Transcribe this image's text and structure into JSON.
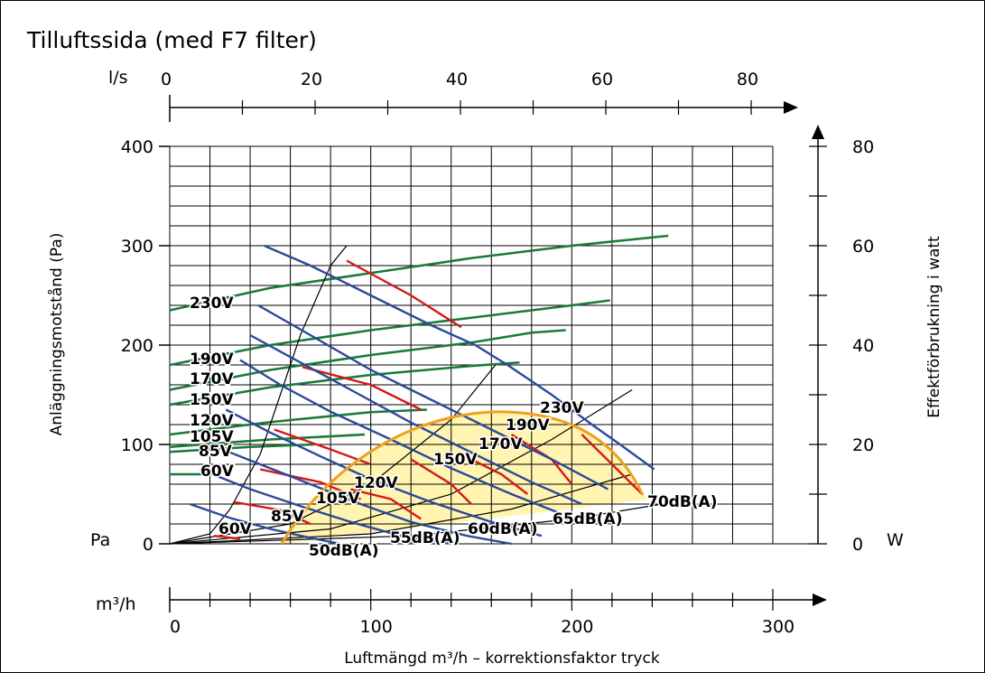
{
  "title": "Tilluftssida (med F7 filter)",
  "colors": {
    "green_curve": "#1a7a3a",
    "red_curve": "#d41a1a",
    "blue_curve": "#2a4a9a",
    "orange_curve": "#f0a020",
    "fill_zone": "#fff4b0",
    "grid": "#000000"
  },
  "chart_data": {
    "type": "line",
    "title": "Tilluftssida (med F7 filter)",
    "xlabel": "Luftmängd m³/h – korrektionsfaktor tryck",
    "ylabel": "Anläggningsmotstånd (Pa)",
    "y2label": "Effektförbrukning i watt",
    "xlim": [
      0,
      300
    ],
    "ylim": [
      0,
      400
    ],
    "y2lim": [
      0,
      80
    ],
    "grid": true,
    "x_ticks": [
      "0",
      "100",
      "200",
      "300"
    ],
    "x_unit_label": "m³/h",
    "y_ticks": [
      "0",
      "100",
      "200",
      "300",
      "400"
    ],
    "y_unit_label": "Pa",
    "y2_ticks": [
      "0",
      "20",
      "40",
      "60",
      "80"
    ],
    "y2_unit_label": "W",
    "top_ticks": [
      "0",
      "20",
      "40",
      "60",
      "80"
    ],
    "top_unit_label": "l/s",
    "fan_curves": [
      {
        "name": "230V",
        "x": [
          47,
          70,
          100,
          130,
          152,
          168,
          190,
          210,
          224,
          241
        ],
        "y": [
          300,
          280,
          250,
          220,
          200,
          180,
          150,
          120,
          100,
          75
        ]
      },
      {
        "name": "190V",
        "x": [
          44,
          70,
          100,
          130,
          160,
          190,
          218
        ],
        "y": [
          240,
          210,
          175,
          145,
          115,
          85,
          55
        ]
      },
      {
        "name": "170V",
        "x": [
          40,
          60,
          90,
          120,
          150,
          180,
          205
        ],
        "y": [
          210,
          188,
          155,
          122,
          92,
          62,
          40
        ]
      },
      {
        "name": "150V",
        "x": [
          35,
          55,
          80,
          110,
          140,
          170,
          195
        ],
        "y": [
          185,
          160,
          133,
          105,
          76,
          50,
          30
        ]
      },
      {
        "name": "120V",
        "x": [
          28,
          50,
          75,
          100,
          130,
          160,
          185
        ],
        "y": [
          135,
          112,
          88,
          65,
          42,
          22,
          8
        ]
      },
      {
        "name": "105V",
        "x": [
          20,
          45,
          70,
          95,
          120,
          148,
          170
        ],
        "y": [
          100,
          80,
          60,
          40,
          22,
          8,
          0
        ]
      },
      {
        "name": "85V",
        "x": [
          15,
          40,
          65,
          90,
          115,
          140
        ],
        "y": [
          75,
          55,
          38,
          22,
          8,
          0
        ]
      },
      {
        "name": "60V",
        "x": [
          10,
          30,
          50,
          70,
          85
        ],
        "y": [
          40,
          26,
          15,
          6,
          0
        ]
      }
    ],
    "power_curves": [
      {
        "name": "230V",
        "x": [
          0,
          50,
          100,
          150,
          200,
          248
        ],
        "y2": [
          47,
          51.5,
          54.5,
          57.5,
          60,
          62
        ]
      },
      {
        "name": "190V",
        "x": [
          0,
          50,
          100,
          150,
          200,
          219
        ],
        "y2": [
          36,
          40,
          43,
          45.5,
          48,
          49
        ]
      },
      {
        "name": "170V",
        "x": [
          0,
          50,
          100,
          150,
          180,
          197
        ],
        "y2": [
          31,
          35,
          38,
          40.5,
          42.5,
          43
        ]
      },
      {
        "name": "150V",
        "x": [
          0,
          50,
          100,
          150,
          174
        ],
        "y2": [
          28,
          31.5,
          34,
          35.8,
          36.5
        ]
      },
      {
        "name": "120V",
        "x": [
          0,
          50,
          100,
          128
        ],
        "y2": [
          22,
          24.5,
          26.5,
          27
        ]
      },
      {
        "name": "105V",
        "x": [
          0,
          50,
          97
        ],
        "y2": [
          19.5,
          21,
          22
        ]
      },
      {
        "name": "85V",
        "x": [
          0,
          40,
          72
        ],
        "y2": [
          18.5,
          19.5,
          20
        ]
      },
      {
        "name": "60V",
        "x": [
          0,
          20,
          25
        ],
        "y2": [
          14,
          14,
          14
        ]
      }
    ],
    "sound_levels": [
      "50dB(A)",
      "55dB(A)",
      "60dB(A)",
      "65dB(A)",
      "70dB(A)"
    ],
    "voltage_labels": [
      "230V",
      "190V",
      "170V",
      "150V",
      "120V",
      "105V",
      "85V",
      "60V"
    ]
  }
}
